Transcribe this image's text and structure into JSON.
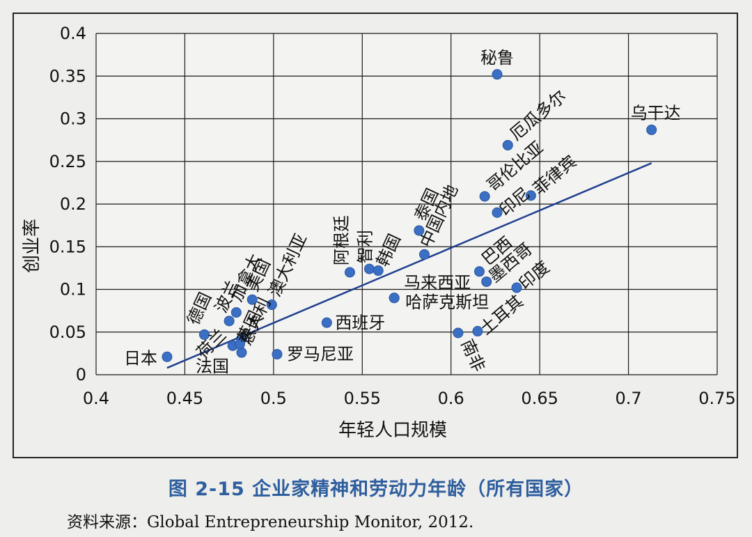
{
  "chart_data": {
    "type": "scatter",
    "xlabel": "年轻人口规模",
    "ylabel": "创业率",
    "xlim": [
      0.4,
      0.75
    ],
    "ylim": [
      0,
      0.4
    ],
    "xticks": [
      "0.4",
      "0.45",
      "0.5",
      "0.55",
      "0.6",
      "0.65",
      "0.7",
      "0.75"
    ],
    "yticks": [
      "0",
      "0.05",
      "0.1",
      "0.15",
      "0.2",
      "0.25",
      "0.3",
      "0.35",
      "0.4"
    ],
    "grid": true,
    "points": [
      {
        "label": "日本",
        "x": 0.44,
        "y": 0.021
      },
      {
        "label": "荷兰",
        "x": 0.477,
        "y": 0.034
      },
      {
        "label": "法国",
        "x": 0.482,
        "y": 0.026
      },
      {
        "label": "德国",
        "x": 0.461,
        "y": 0.047
      },
      {
        "label": "波兰",
        "x": 0.475,
        "y": 0.063
      },
      {
        "label": "加拿大",
        "x": 0.479,
        "y": 0.073
      },
      {
        "label": "美国",
        "x": 0.488,
        "y": 0.088
      },
      {
        "label": "英国",
        "x": 0.482,
        "y": 0.042
      },
      {
        "label": "意大利",
        "x": 0.481,
        "y": 0.036
      },
      {
        "label": "澳大利亚",
        "x": 0.499,
        "y": 0.082
      },
      {
        "label": "罗马尼亚",
        "x": 0.502,
        "y": 0.024
      },
      {
        "label": "西班牙",
        "x": 0.53,
        "y": 0.061
      },
      {
        "label": "阿根廷",
        "x": 0.543,
        "y": 0.12
      },
      {
        "label": "智利",
        "x": 0.554,
        "y": 0.124
      },
      {
        "label": "韩国",
        "x": 0.559,
        "y": 0.122
      },
      {
        "label": "哈萨克斯坦",
        "x": 0.568,
        "y": 0.09
      },
      {
        "label": "马来西亚",
        "x": 0.568,
        "y": 0.09
      },
      {
        "label": "泰国",
        "x": 0.582,
        "y": 0.169
      },
      {
        "label": "中国内地",
        "x": 0.585,
        "y": 0.141
      },
      {
        "label": "南非",
        "x": 0.604,
        "y": 0.049
      },
      {
        "label": "土耳其",
        "x": 0.615,
        "y": 0.051
      },
      {
        "label": "巴西",
        "x": 0.616,
        "y": 0.121
      },
      {
        "label": "墨西哥",
        "x": 0.62,
        "y": 0.109
      },
      {
        "label": "印度",
        "x": 0.637,
        "y": 0.102
      },
      {
        "label": "哥伦比亚",
        "x": 0.619,
        "y": 0.209
      },
      {
        "label": "印尼",
        "x": 0.626,
        "y": 0.19
      },
      {
        "label": "厄瓜多尔",
        "x": 0.632,
        "y": 0.269
      },
      {
        "label": "菲律宾",
        "x": 0.645,
        "y": 0.21
      },
      {
        "label": "秘鲁",
        "x": 0.626,
        "y": 0.352
      },
      {
        "label": "乌干达",
        "x": 0.713,
        "y": 0.287
      }
    ],
    "trendline": {
      "x1": 0.44,
      "y1": 0.008,
      "x2": 0.713,
      "y2": 0.248
    }
  },
  "caption": "图 2-15    企业家精神和劳动力年龄（所有国家）",
  "source": "资料来源：Global Entrepreneurship Monitor, 2012."
}
